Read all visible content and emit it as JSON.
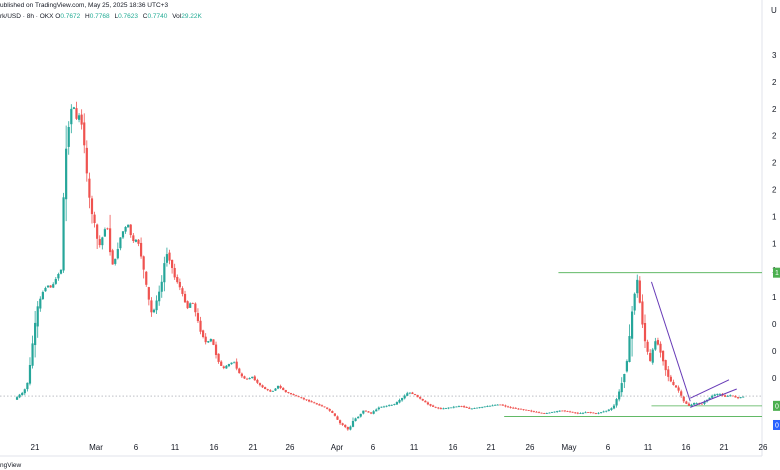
{
  "header": {
    "published_text": "ublished on TradingView.com, May 25, 2025 18:36 UTC+3",
    "symbol_text": "rk/USD · 8h · OKX",
    "ohlc": [
      {
        "label": "O",
        "value": "0.7672"
      },
      {
        "label": "H",
        "value": "0.7768"
      },
      {
        "label": "L",
        "value": "0.7623"
      },
      {
        "label": "C",
        "value": "0.7740"
      },
      {
        "label": "Vol",
        "value": "29.22K"
      }
    ]
  },
  "right_axis": {
    "currency_label": "U",
    "ticks": [
      "3",
      "2",
      "2",
      "2",
      "2",
      "2",
      "1",
      "1",
      "1",
      "1",
      "0",
      "0",
      "0"
    ],
    "tags": [
      {
        "text": "1",
        "color": "#4caf50"
      },
      {
        "text": "0",
        "color": "#4caf50"
      },
      {
        "text": "0",
        "color": "#2962ff"
      }
    ]
  },
  "time_axis": {
    "labels": [
      "21",
      "Mar",
      "6",
      "11",
      "16",
      "21",
      "26",
      "Apr",
      "6",
      "11",
      "16",
      "21",
      "26",
      "May",
      "6",
      "11",
      "16",
      "21",
      "26"
    ]
  },
  "footer": {
    "brand": "ngView"
  },
  "colors": {
    "up": "#26a69a",
    "down": "#ef5350",
    "hline": "#4caf50",
    "hline_blue": "#2962ff",
    "trend": "#673ab7"
  },
  "chart_data": {
    "type": "candlestick",
    "interval": "8h",
    "segments": [
      {
        "from": "Feb 20",
        "to": "Feb 26",
        "points": [
          0.75,
          0.78,
          0.8,
          0.88,
          1.15,
          1.35,
          1.45,
          1.5,
          1.48,
          1.55,
          1.6
        ]
      },
      {
        "from": "Feb 26",
        "to": "Mar 1",
        "points": [
          1.6,
          2.3,
          2.55,
          2.7,
          2.58,
          2.62,
          2.42
        ]
      },
      {
        "from": "Mar 1",
        "to": "Mar 6",
        "points": [
          2.42,
          2.15,
          2.0,
          1.92,
          1.8,
          1.75,
          1.85,
          1.9,
          1.72,
          1.62,
          1.7,
          1.8,
          1.85
        ]
      },
      {
        "from": "Mar 6",
        "to": "Mar 11",
        "points": [
          1.85,
          1.9,
          1.78,
          1.8,
          1.65,
          1.45,
          1.3,
          1.4,
          1.52
        ]
      },
      {
        "from": "Mar 11",
        "to": "Mar 16",
        "points": [
          1.52,
          1.72,
          1.65,
          1.55,
          1.5,
          1.42,
          1.35,
          1.4,
          1.3,
          1.2
        ]
      },
      {
        "from": "Mar 16",
        "to": "Mar 21",
        "points": [
          1.2,
          1.12,
          1.15,
          1.02,
          0.95,
          0.98,
          1.0,
          0.92
        ]
      },
      {
        "from": "Mar 21",
        "to": "Mar 26",
        "points": [
          0.92,
          0.88,
          0.9,
          0.85,
          0.82,
          0.8,
          0.84
        ]
      },
      {
        "from": "Mar 26",
        "to": "Apr 1",
        "points": [
          0.84,
          0.8,
          0.78,
          0.76,
          0.74,
          0.72,
          0.7
        ]
      },
      {
        "from": "Apr 1",
        "to": "Apr 6",
        "points": [
          0.7,
          0.68,
          0.65,
          0.6,
          0.58,
          0.55,
          0.62,
          0.64,
          0.68
        ]
      },
      {
        "from": "Apr 6",
        "to": "Apr 11",
        "points": [
          0.68,
          0.66,
          0.7,
          0.71,
          0.72,
          0.76
        ]
      },
      {
        "from": "Apr 11",
        "to": "Apr 16",
        "points": [
          0.76,
          0.8,
          0.78,
          0.75,
          0.72,
          0.7,
          0.69
        ]
      },
      {
        "from": "Apr 16",
        "to": "Apr 26",
        "points": [
          0.69,
          0.7,
          0.71,
          0.69,
          0.7,
          0.71,
          0.72,
          0.7,
          0.69
        ]
      },
      {
        "from": "Apr 26",
        "to": "May 6",
        "points": [
          0.69,
          0.68,
          0.67,
          0.66,
          0.67,
          0.68,
          0.67,
          0.66,
          0.67,
          0.66
        ]
      },
      {
        "from": "May 6",
        "to": "May 9",
        "points": [
          0.66,
          0.67,
          0.68,
          0.7,
          0.8
        ]
      },
      {
        "from": "May 9",
        "to": "May 13",
        "points": [
          0.8,
          0.9,
          1.05,
          1.35,
          1.55,
          1.3,
          1.1,
          1.0
        ]
      },
      {
        "from": "May 13",
        "to": "May 18",
        "points": [
          1.0,
          1.15,
          1.05,
          0.92,
          0.85,
          0.82,
          0.74,
          0.71
        ]
      },
      {
        "from": "May 18",
        "to": "May 25",
        "points": [
          0.71,
          0.73,
          0.72,
          0.75,
          0.78,
          0.79,
          0.77,
          0.78,
          0.76,
          0.77
        ]
      }
    ],
    "xlim": [
      "Feb 19",
      "May 27"
    ],
    "ylim": [
      0.5,
      3.1
    ],
    "horizontal_lines": [
      {
        "value": 1.58,
        "from": "May 1",
        "color": "#4caf50"
      },
      {
        "value": 0.71,
        "from": "May 13",
        "color": "#4caf50"
      },
      {
        "value": 0.64,
        "from": "Apr 24",
        "color": "#4caf50"
      }
    ],
    "trend_lines": [
      {
        "from": {
          "x": "May 13",
          "y": 1.52
        },
        "to": {
          "x": "May 18",
          "y": 0.74
        },
        "color": "#673ab7"
      },
      {
        "from": {
          "x": "May 18",
          "y": 0.76
        },
        "to": {
          "x": "May 23",
          "y": 0.88
        },
        "color": "#673ab7"
      },
      {
        "from": {
          "x": "May 18",
          "y": 0.7
        },
        "to": {
          "x": "May 24",
          "y": 0.82
        },
        "color": "#673ab7"
      }
    ],
    "last_price_line": 0.774
  }
}
